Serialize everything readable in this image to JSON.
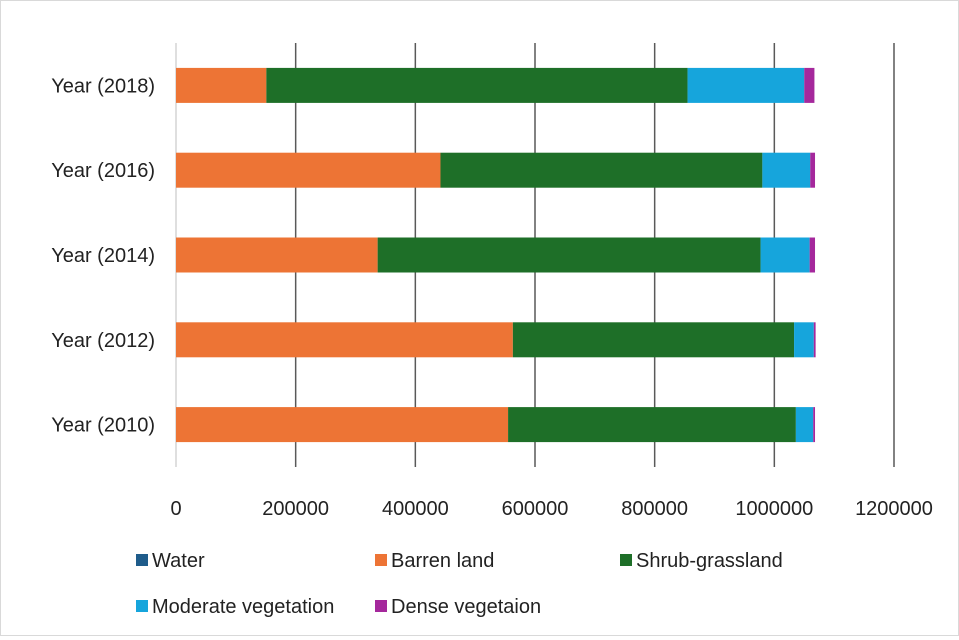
{
  "chart_data": {
    "type": "bar",
    "orientation": "horizontal",
    "stacked": true,
    "title": "",
    "xlabel": "",
    "ylabel": "",
    "xlim": [
      0,
      1200000
    ],
    "x_ticks": [
      "0",
      "200000",
      "400000",
      "600000",
      "800000",
      "1000000",
      "1200000"
    ],
    "categories": [
      "Year (2018)",
      "Year (2016)",
      "Year (2014)",
      "Year (2012)",
      "Year (2010)"
    ],
    "series": [
      {
        "name": "Water",
        "color": "#1f5c8b",
        "values": [
          0,
          0,
          0,
          0,
          0
        ]
      },
      {
        "name": "Barren land",
        "color": "#ed7435",
        "values": [
          151000,
          442000,
          337000,
          563000,
          555000
        ]
      },
      {
        "name": "Shrub-grassland",
        "color": "#1e6f28",
        "values": [
          704000,
          538000,
          640000,
          470000,
          481000
        ]
      },
      {
        "name": "Moderate vegetation",
        "color": "#16a5dc",
        "values": [
          195000,
          80000,
          82000,
          33000,
          29000
        ]
      },
      {
        "name": "Dense vegetaion",
        "color": "#a5289c",
        "values": [
          17000,
          8000,
          9000,
          3000,
          3000
        ]
      }
    ],
    "grid": {
      "vertical": true,
      "horizontal": false
    },
    "legend_position": "bottom"
  }
}
